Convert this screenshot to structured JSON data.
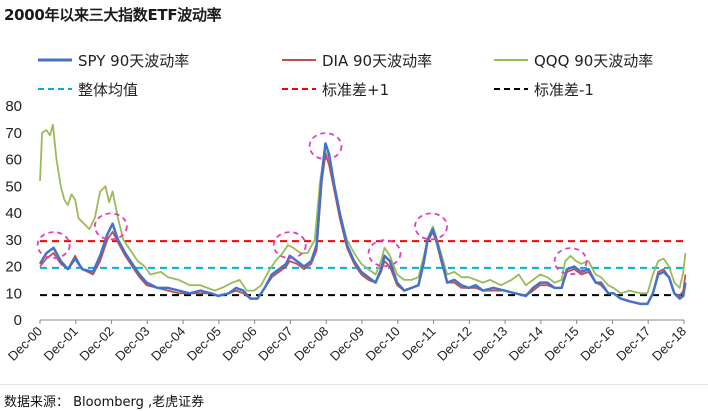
{
  "title": "2000年以来三大指数ETF波动率",
  "source": "数据来源： Bloomberg ,老虎证券",
  "chart_data": {
    "type": "line",
    "title": "2000年以来三大指数ETF波动率",
    "xlabel": "",
    "ylabel": "",
    "ylim": [
      0,
      80
    ],
    "yticks": [
      0,
      10,
      20,
      30,
      40,
      50,
      60,
      70,
      80
    ],
    "xticks": [
      "Dec-00",
      "Dec-01",
      "Dec-02",
      "Dec-03",
      "Dec-04",
      "Dec-05",
      "Dec-06",
      "Dec-07",
      "Dec-08",
      "Dec-09",
      "Dec-10",
      "Dec-11",
      "Dec-12",
      "Dec-13",
      "Dec-14",
      "Dec-15",
      "Dec-16",
      "Dec-17",
      "Dec-18"
    ],
    "grid": false,
    "legend_position": "top",
    "x_start": 2000.92,
    "series": [
      {
        "name": "SPY 90天波动率",
        "color": "#4472c4",
        "points": [
          [
            2000.92,
            21
          ],
          [
            2001.1,
            25
          ],
          [
            2001.3,
            27
          ],
          [
            2001.5,
            22
          ],
          [
            2001.7,
            19
          ],
          [
            2001.9,
            23
          ],
          [
            2002.1,
            19
          ],
          [
            2002.4,
            18
          ],
          [
            2002.6,
            24
          ],
          [
            2002.8,
            32
          ],
          [
            2002.95,
            36
          ],
          [
            2003.1,
            30
          ],
          [
            2003.3,
            25
          ],
          [
            2003.5,
            21
          ],
          [
            2003.7,
            17
          ],
          [
            2003.9,
            14
          ],
          [
            2004.2,
            12
          ],
          [
            2004.5,
            12
          ],
          [
            2004.8,
            11
          ],
          [
            2005.1,
            10
          ],
          [
            2005.4,
            11
          ],
          [
            2005.7,
            10
          ],
          [
            2005.9,
            9
          ],
          [
            2006.2,
            10
          ],
          [
            2006.4,
            12
          ],
          [
            2006.6,
            11
          ],
          [
            2006.8,
            8
          ],
          [
            2007.0,
            8
          ],
          [
            2007.2,
            12
          ],
          [
            2007.4,
            17
          ],
          [
            2007.6,
            19
          ],
          [
            2007.8,
            21
          ],
          [
            2007.9,
            24
          ],
          [
            2008.1,
            22
          ],
          [
            2008.3,
            20
          ],
          [
            2008.5,
            22
          ],
          [
            2008.65,
            28
          ],
          [
            2008.8,
            55
          ],
          [
            2008.9,
            66
          ],
          [
            2009.0,
            62
          ],
          [
            2009.15,
            50
          ],
          [
            2009.3,
            40
          ],
          [
            2009.5,
            28
          ],
          [
            2009.7,
            22
          ],
          [
            2009.9,
            18
          ],
          [
            2010.1,
            16
          ],
          [
            2010.3,
            14
          ],
          [
            2010.45,
            19
          ],
          [
            2010.55,
            24
          ],
          [
            2010.7,
            22
          ],
          [
            2010.9,
            14
          ],
          [
            2011.1,
            11
          ],
          [
            2011.3,
            12
          ],
          [
            2011.5,
            13
          ],
          [
            2011.65,
            22
          ],
          [
            2011.75,
            30
          ],
          [
            2011.9,
            34
          ],
          [
            2012.0,
            30
          ],
          [
            2012.15,
            22
          ],
          [
            2012.3,
            14
          ],
          [
            2012.5,
            15
          ],
          [
            2012.7,
            13
          ],
          [
            2012.9,
            12
          ],
          [
            2013.1,
            13
          ],
          [
            2013.3,
            11
          ],
          [
            2013.6,
            12
          ],
          [
            2013.9,
            11
          ],
          [
            2014.2,
            10
          ],
          [
            2014.5,
            9
          ],
          [
            2014.7,
            12
          ],
          [
            2014.9,
            14
          ],
          [
            2015.1,
            14
          ],
          [
            2015.3,
            12
          ],
          [
            2015.5,
            12
          ],
          [
            2015.65,
            19
          ],
          [
            2015.85,
            20
          ],
          [
            2016.05,
            18
          ],
          [
            2016.25,
            19
          ],
          [
            2016.45,
            14
          ],
          [
            2016.6,
            14
          ],
          [
            2016.8,
            10
          ],
          [
            2016.95,
            10
          ],
          [
            2017.15,
            8
          ],
          [
            2017.4,
            7
          ],
          [
            2017.7,
            6
          ],
          [
            2017.9,
            6
          ],
          [
            2018.05,
            10
          ],
          [
            2018.2,
            17
          ],
          [
            2018.35,
            18
          ],
          [
            2018.5,
            16
          ],
          [
            2018.65,
            10
          ],
          [
            2018.8,
            8
          ],
          [
            2018.9,
            9
          ],
          [
            2018.96,
            14
          ]
        ]
      },
      {
        "name": "DIA 90天波动率",
        "color": "#c0504d",
        "points": [
          [
            2000.92,
            20
          ],
          [
            2001.1,
            23
          ],
          [
            2001.3,
            25
          ],
          [
            2001.5,
            21
          ],
          [
            2001.7,
            19
          ],
          [
            2001.9,
            24
          ],
          [
            2002.1,
            19
          ],
          [
            2002.4,
            17
          ],
          [
            2002.6,
            22
          ],
          [
            2002.8,
            30
          ],
          [
            2002.95,
            33
          ],
          [
            2003.1,
            29
          ],
          [
            2003.3,
            24
          ],
          [
            2003.5,
            20
          ],
          [
            2003.7,
            16
          ],
          [
            2003.9,
            13
          ],
          [
            2004.2,
            12
          ],
          [
            2004.5,
            11
          ],
          [
            2004.8,
            10
          ],
          [
            2005.1,
            10
          ],
          [
            2005.4,
            10
          ],
          [
            2005.7,
            10
          ],
          [
            2005.9,
            9
          ],
          [
            2006.2,
            10
          ],
          [
            2006.4,
            11
          ],
          [
            2006.6,
            10
          ],
          [
            2006.8,
            8
          ],
          [
            2007.0,
            8
          ],
          [
            2007.2,
            12
          ],
          [
            2007.4,
            16
          ],
          [
            2007.6,
            18
          ],
          [
            2007.8,
            20
          ],
          [
            2007.9,
            22
          ],
          [
            2008.1,
            21
          ],
          [
            2008.3,
            19
          ],
          [
            2008.5,
            21
          ],
          [
            2008.65,
            26
          ],
          [
            2008.8,
            52
          ],
          [
            2008.9,
            62
          ],
          [
            2009.0,
            58
          ],
          [
            2009.15,
            48
          ],
          [
            2009.3,
            38
          ],
          [
            2009.5,
            27
          ],
          [
            2009.7,
            21
          ],
          [
            2009.9,
            17
          ],
          [
            2010.1,
            15
          ],
          [
            2010.3,
            14
          ],
          [
            2010.45,
            18
          ],
          [
            2010.55,
            22
          ],
          [
            2010.7,
            20
          ],
          [
            2010.9,
            13
          ],
          [
            2011.1,
            11
          ],
          [
            2011.3,
            12
          ],
          [
            2011.5,
            13
          ],
          [
            2011.65,
            21
          ],
          [
            2011.75,
            29
          ],
          [
            2011.9,
            33
          ],
          [
            2012.0,
            29
          ],
          [
            2012.15,
            21
          ],
          [
            2012.3,
            14
          ],
          [
            2012.5,
            14
          ],
          [
            2012.7,
            12
          ],
          [
            2012.9,
            12
          ],
          [
            2013.1,
            12
          ],
          [
            2013.3,
            11
          ],
          [
            2013.6,
            11
          ],
          [
            2013.9,
            11
          ],
          [
            2014.2,
            10
          ],
          [
            2014.5,
            9
          ],
          [
            2014.7,
            11
          ],
          [
            2014.9,
            13
          ],
          [
            2015.1,
            13
          ],
          [
            2015.3,
            12
          ],
          [
            2015.5,
            12
          ],
          [
            2015.65,
            18
          ],
          [
            2015.85,
            19
          ],
          [
            2016.05,
            17
          ],
          [
            2016.25,
            18
          ],
          [
            2016.45,
            14
          ],
          [
            2016.6,
            13
          ],
          [
            2016.8,
            10
          ],
          [
            2016.95,
            10
          ],
          [
            2017.15,
            8
          ],
          [
            2017.4,
            7
          ],
          [
            2017.7,
            6
          ],
          [
            2017.9,
            6
          ],
          [
            2018.05,
            10
          ],
          [
            2018.2,
            18
          ],
          [
            2018.35,
            19
          ],
          [
            2018.5,
            16
          ],
          [
            2018.65,
            10
          ],
          [
            2018.8,
            9
          ],
          [
            2018.9,
            11
          ],
          [
            2018.96,
            17
          ]
        ]
      },
      {
        "name": "QQQ 90天波动率",
        "color": "#9bbb59",
        "points": [
          [
            2000.92,
            52
          ],
          [
            2000.98,
            70
          ],
          [
            2001.1,
            71
          ],
          [
            2001.2,
            69
          ],
          [
            2001.28,
            73
          ],
          [
            2001.38,
            60
          ],
          [
            2001.5,
            50
          ],
          [
            2001.6,
            45
          ],
          [
            2001.7,
            43
          ],
          [
            2001.8,
            47
          ],
          [
            2001.9,
            45
          ],
          [
            2002.0,
            38
          ],
          [
            2002.15,
            36
          ],
          [
            2002.3,
            34
          ],
          [
            2002.45,
            38
          ],
          [
            2002.6,
            48
          ],
          [
            2002.75,
            50
          ],
          [
            2002.85,
            44
          ],
          [
            2002.95,
            48
          ],
          [
            2003.1,
            38
          ],
          [
            2003.25,
            30
          ],
          [
            2003.45,
            26
          ],
          [
            2003.65,
            22
          ],
          [
            2003.85,
            20
          ],
          [
            2004.0,
            17
          ],
          [
            2004.3,
            18
          ],
          [
            2004.5,
            16
          ],
          [
            2004.8,
            15
          ],
          [
            2005.1,
            13
          ],
          [
            2005.4,
            13
          ],
          [
            2005.6,
            12
          ],
          [
            2005.8,
            11
          ],
          [
            2006.0,
            12
          ],
          [
            2006.3,
            14
          ],
          [
            2006.5,
            15
          ],
          [
            2006.7,
            11
          ],
          [
            2006.9,
            11
          ],
          [
            2007.1,
            13
          ],
          [
            2007.3,
            18
          ],
          [
            2007.5,
            22
          ],
          [
            2007.7,
            25
          ],
          [
            2007.85,
            28
          ],
          [
            2008.0,
            27
          ],
          [
            2008.2,
            25
          ],
          [
            2008.4,
            25
          ],
          [
            2008.6,
            30
          ],
          [
            2008.75,
            52
          ],
          [
            2008.9,
            63
          ],
          [
            2009.0,
            60
          ],
          [
            2009.15,
            50
          ],
          [
            2009.3,
            40
          ],
          [
            2009.5,
            30
          ],
          [
            2009.7,
            25
          ],
          [
            2009.9,
            21
          ],
          [
            2010.1,
            19
          ],
          [
            2010.3,
            17
          ],
          [
            2010.45,
            22
          ],
          [
            2010.55,
            27
          ],
          [
            2010.7,
            24
          ],
          [
            2010.9,
            17
          ],
          [
            2011.1,
            15
          ],
          [
            2011.3,
            15
          ],
          [
            2011.5,
            16
          ],
          [
            2011.65,
            24
          ],
          [
            2011.75,
            30
          ],
          [
            2011.9,
            35
          ],
          [
            2012.0,
            31
          ],
          [
            2012.15,
            24
          ],
          [
            2012.3,
            17
          ],
          [
            2012.5,
            18
          ],
          [
            2012.7,
            16
          ],
          [
            2012.9,
            16
          ],
          [
            2013.1,
            15
          ],
          [
            2013.3,
            14
          ],
          [
            2013.5,
            15
          ],
          [
            2013.8,
            13
          ],
          [
            2014.1,
            15
          ],
          [
            2014.3,
            17
          ],
          [
            2014.5,
            13
          ],
          [
            2014.7,
            15
          ],
          [
            2014.9,
            17
          ],
          [
            2015.1,
            16
          ],
          [
            2015.3,
            14
          ],
          [
            2015.5,
            15
          ],
          [
            2015.6,
            22
          ],
          [
            2015.75,
            24
          ],
          [
            2015.9,
            22
          ],
          [
            2016.05,
            21
          ],
          [
            2016.25,
            22
          ],
          [
            2016.45,
            17
          ],
          [
            2016.6,
            16
          ],
          [
            2016.8,
            13
          ],
          [
            2016.95,
            12
          ],
          [
            2017.15,
            10
          ],
          [
            2017.4,
            11
          ],
          [
            2017.7,
            10
          ],
          [
            2017.9,
            10
          ],
          [
            2018.05,
            17
          ],
          [
            2018.2,
            22
          ],
          [
            2018.35,
            23
          ],
          [
            2018.5,
            20
          ],
          [
            2018.65,
            14
          ],
          [
            2018.8,
            12
          ],
          [
            2018.9,
            18
          ],
          [
            2018.96,
            25
          ]
        ]
      }
    ],
    "reference_lines": [
      {
        "name": "整体均值",
        "value": 19.5,
        "color": "#00b0d8"
      },
      {
        "name": "标准差+1",
        "value": 29.5,
        "color": "#ff0000"
      },
      {
        "name": "标准差-1",
        "value": 9.3,
        "color": "#000000"
      }
    ],
    "annotations": {
      "shape": "dashed-ellipse",
      "color": "#e040c0",
      "centers": [
        [
          2001.3,
          28
        ],
        [
          2002.9,
          35
        ],
        [
          2007.9,
          28
        ],
        [
          2008.9,
          65
        ],
        [
          2010.55,
          25
        ],
        [
          2011.85,
          35
        ],
        [
          2015.75,
          22
        ]
      ]
    }
  }
}
